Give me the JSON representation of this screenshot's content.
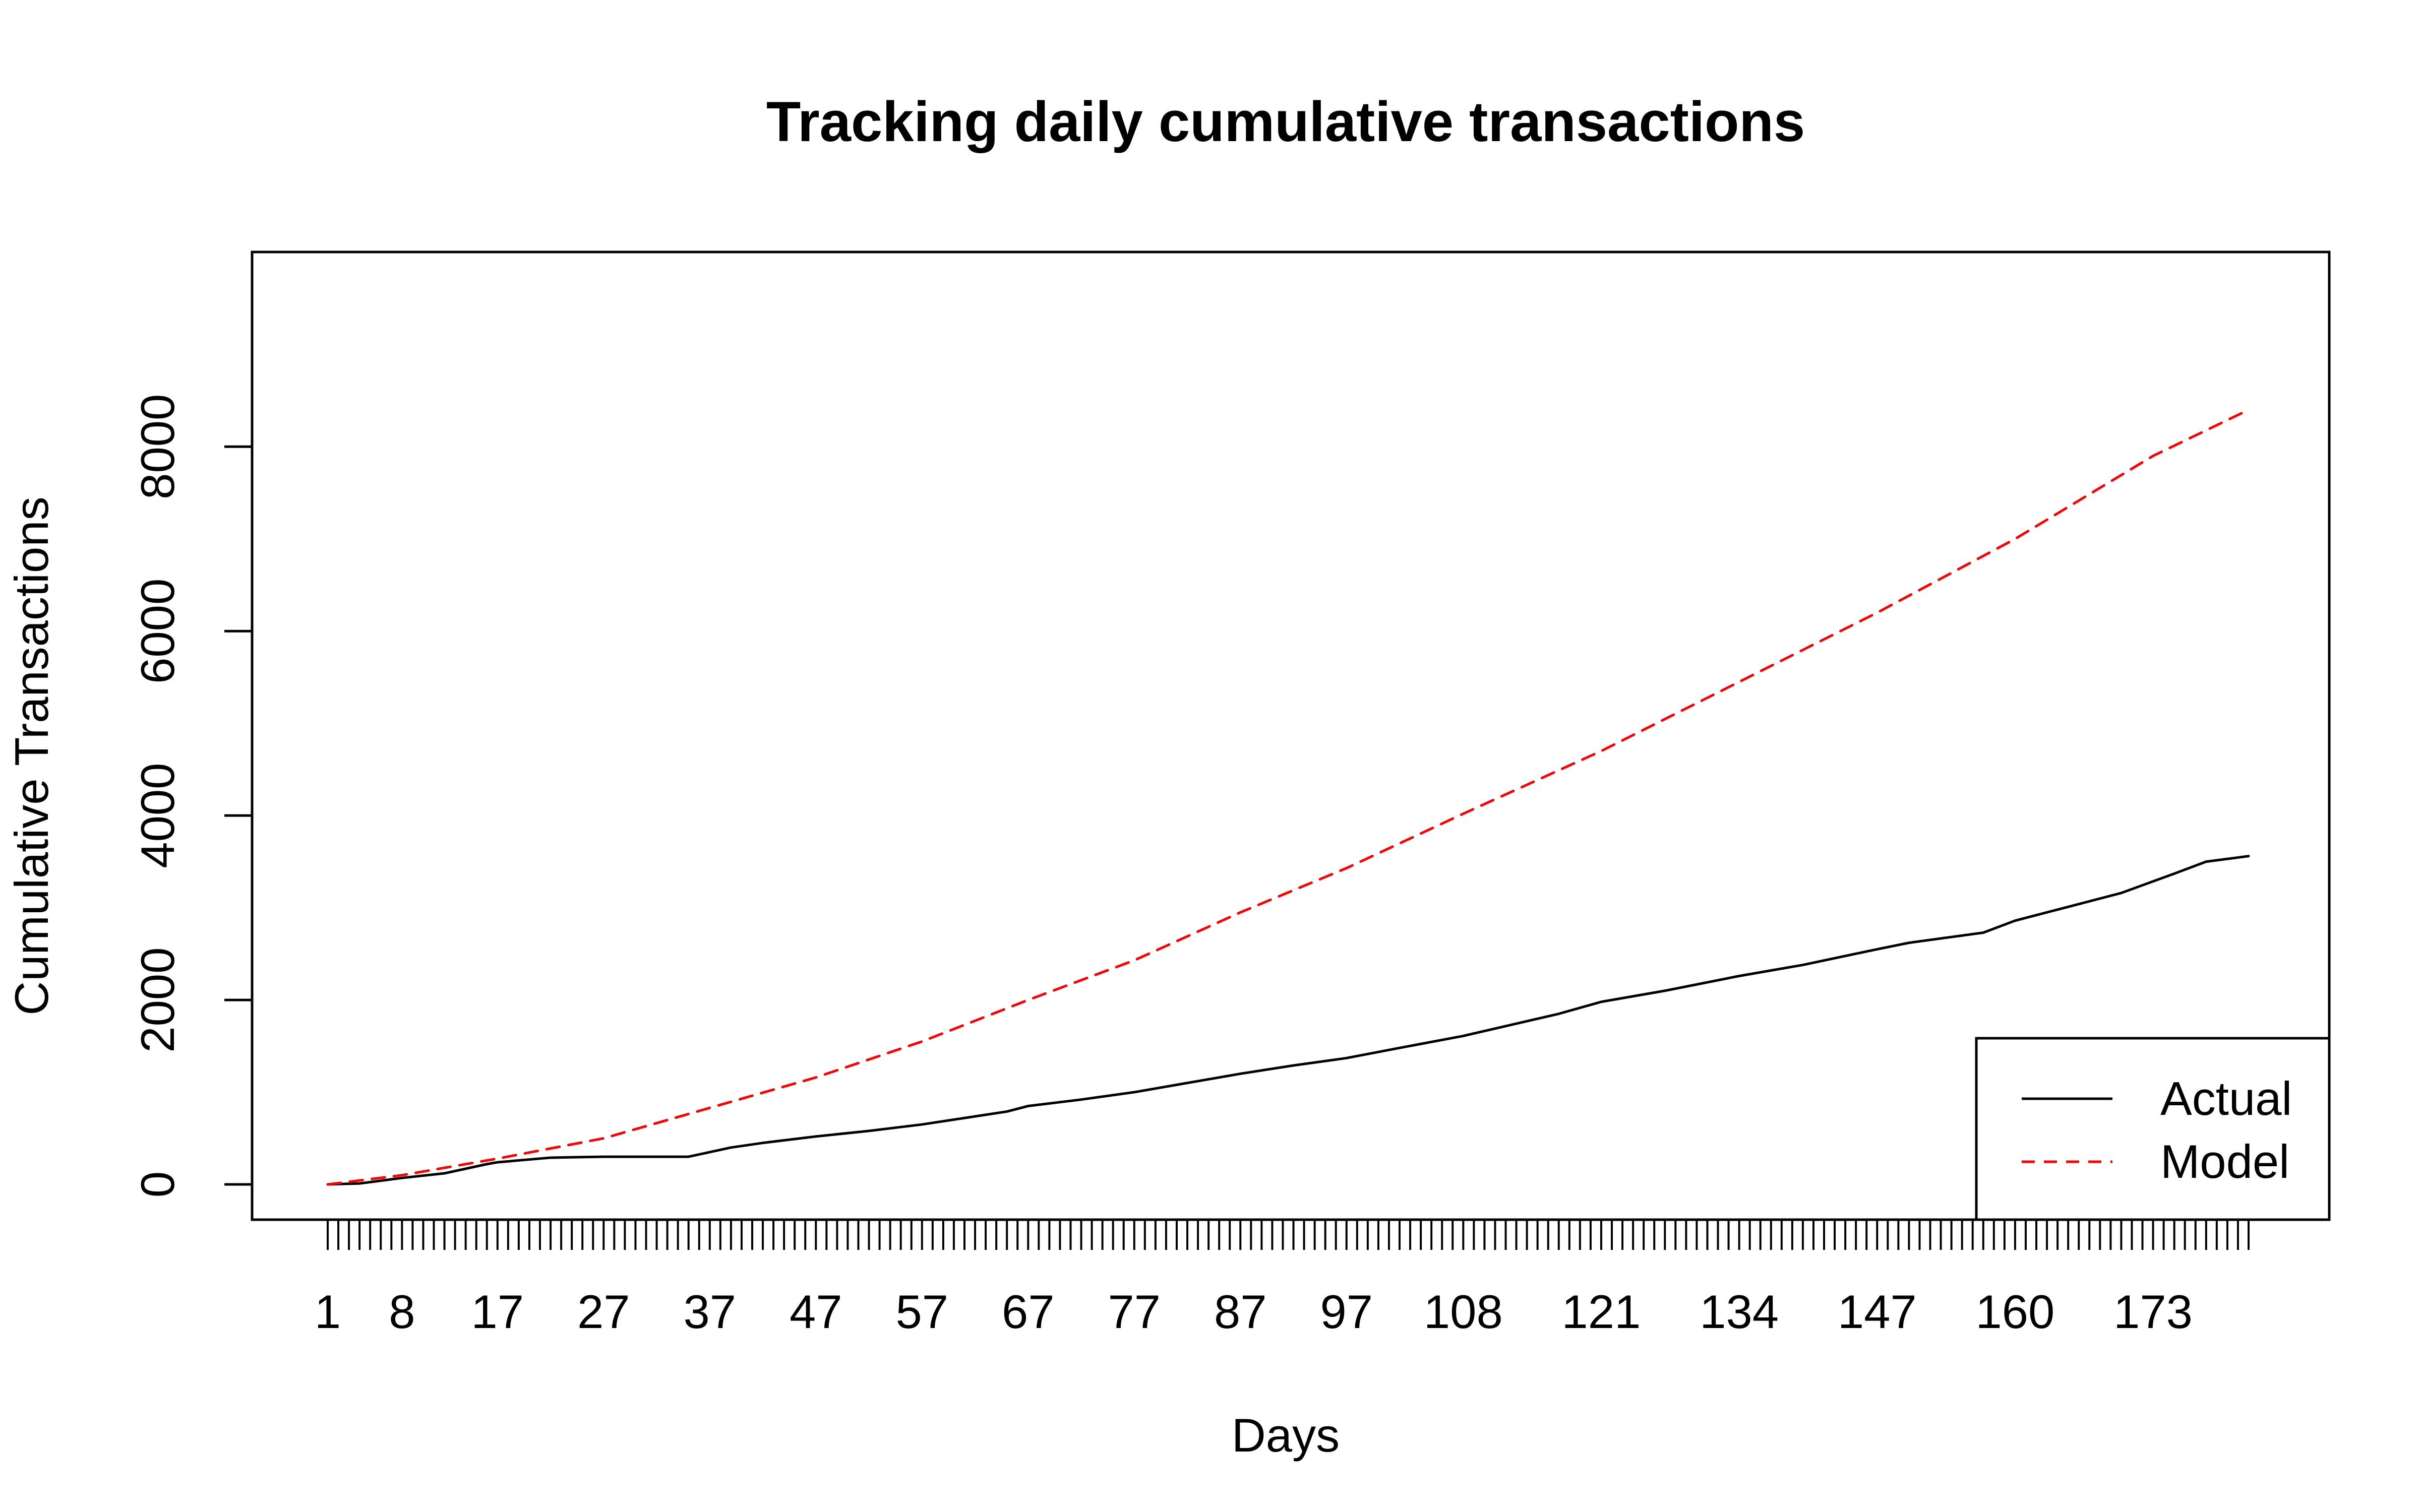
{
  "chart_data": {
    "type": "line",
    "title": "Tracking daily cumulative transactions",
    "xlabel": "Days",
    "ylabel": "Cumulative Transactions",
    "xlim": [
      1,
      182
    ],
    "ylim": [
      0,
      9100
    ],
    "grid": false,
    "legend_position": "bottom-right",
    "x_tick_labels": [
      "1",
      "8",
      "17",
      "27",
      "37",
      "47",
      "57",
      "67",
      "77",
      "87",
      "97",
      "108",
      "121",
      "134",
      "147",
      "160",
      "173"
    ],
    "y_ticks": [
      0,
      2000,
      4000,
      6000,
      8000
    ],
    "y_tick_labels": [
      "0",
      "2000",
      "4000",
      "6000",
      "8000"
    ],
    "series": [
      {
        "name": "Actual",
        "color": "#000000",
        "dash": "solid",
        "x": [
          1,
          4,
          8,
          12,
          16,
          17,
          22,
          27,
          32,
          35,
          37,
          39,
          42,
          47,
          52,
          57,
          61,
          65,
          67,
          72,
          77,
          81,
          87,
          92,
          97,
          102,
          108,
          111,
          117,
          121,
          127,
          134,
          140,
          147,
          150,
          157,
          160,
          165,
          170,
          175,
          178,
          182
        ],
        "y": [
          0,
          10,
          70,
          120,
          220,
          240,
          290,
          300,
          300,
          300,
          350,
          400,
          450,
          520,
          580,
          650,
          720,
          790,
          850,
          920,
          1000,
          1080,
          1200,
          1290,
          1370,
          1480,
          1610,
          1690,
          1850,
          1980,
          2100,
          2260,
          2380,
          2550,
          2620,
          2730,
          2860,
          3010,
          3160,
          3370,
          3500,
          3560
        ]
      },
      {
        "name": "Model",
        "color": "#ff0000",
        "dash": "dashed",
        "x": [
          1,
          8,
          17,
          27,
          37,
          47,
          57,
          67,
          77,
          87,
          97,
          108,
          121,
          134,
          147,
          160,
          173,
          182
        ],
        "y": [
          0,
          100,
          280,
          500,
          830,
          1160,
          1550,
          2000,
          2430,
          2950,
          3430,
          4020,
          4700,
          5450,
          6200,
          7000,
          7900,
          8400
        ]
      }
    ]
  }
}
